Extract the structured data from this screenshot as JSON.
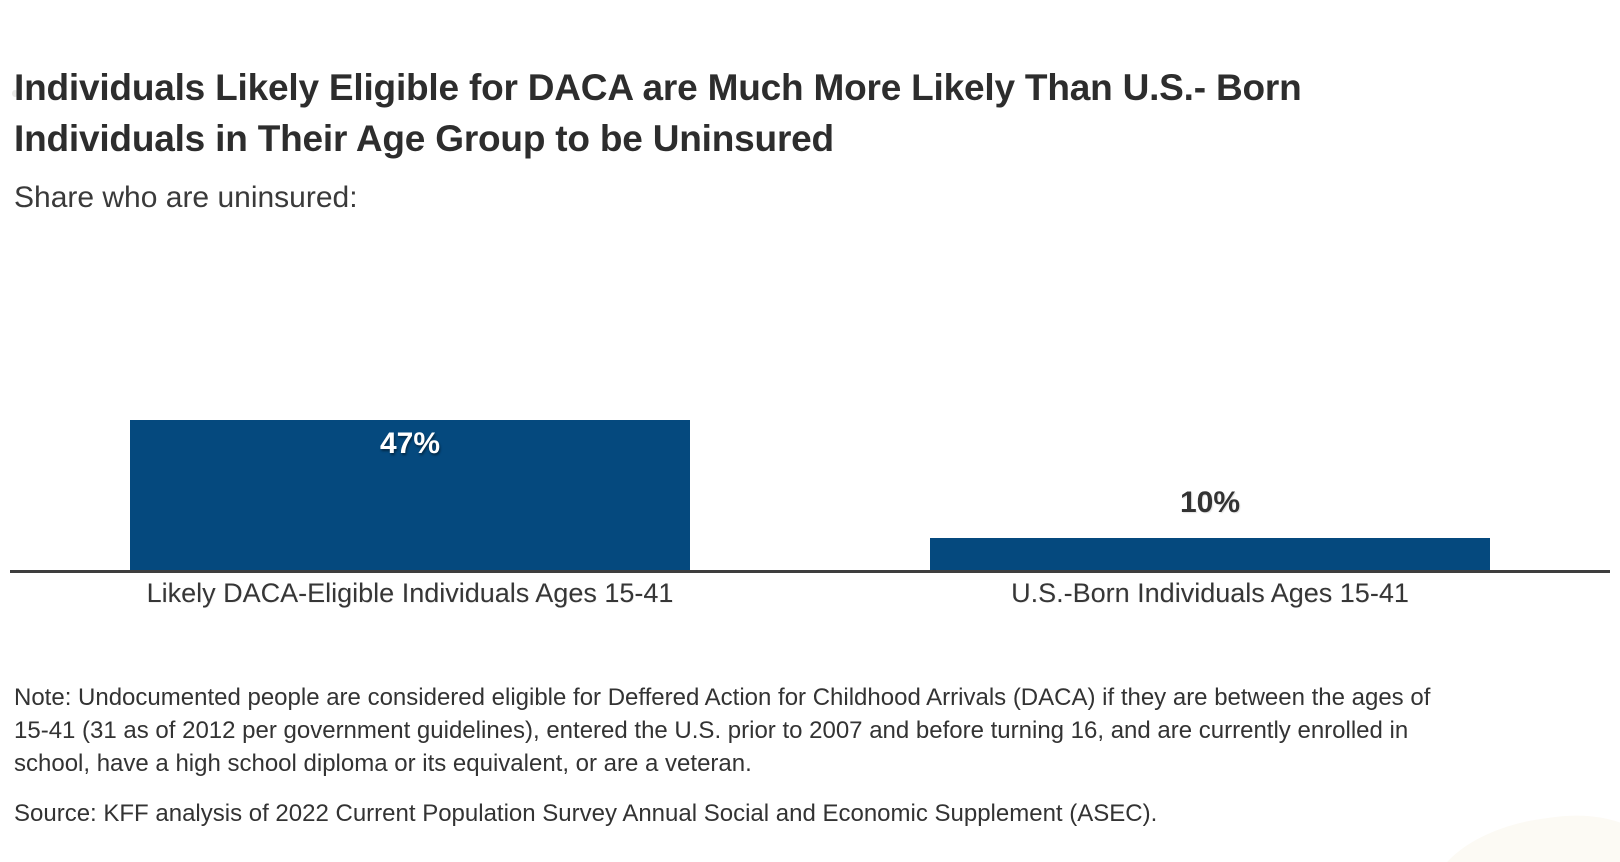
{
  "header": {
    "title_lines": [
      "Individuals Likely Eligible for DACA are Much More Likely Than U.S.- Born",
      "Individuals in Their Age Group to be Uninsured"
    ],
    "subtitle": "Share who are uninsured:"
  },
  "chart_data": {
    "type": "bar",
    "title": "Individuals Likely Eligible for DACA are Much More Likely Than U.S.- Born Individuals in Their Age Group to be Uninsured",
    "subtitle": "Share who are uninsured:",
    "categories": [
      "Likely DACA-Eligible Individuals Ages 15-41",
      "U.S.-Born Individuals Ages 15-41"
    ],
    "values": [
      47,
      10
    ],
    "value_labels": [
      "47%",
      "10%"
    ],
    "unit": "percent",
    "xlabel": "",
    "ylabel": "",
    "ylim": [
      0,
      101
    ],
    "grid": false,
    "legend": false,
    "y_axis_shown": false,
    "bar_color": "#05497e",
    "axis_line_color": "#3e3e3e",
    "orientation": "vertical"
  },
  "footer": {
    "note": "Note: Undocumented people are considered eligible for Deffered Action for Childhood Arrivals (DACA) if they are between the ages of 15-41 (31 as of 2012 per government guidelines), entered the U.S. prior to 2007 and before turning 16, and are currently enrolled in school, have a high school diploma or its equivalent, or are a veteran.",
    "source": "Source: KFF analysis of 2022 Current Population Survey Annual Social and Economic Supplement (ASEC)."
  },
  "colors": {
    "bar_blue": "#05497e",
    "axis": "#3e3e3e",
    "title_text": "#2d2d2d",
    "body_text": "#333333",
    "background": "#ffffff"
  }
}
